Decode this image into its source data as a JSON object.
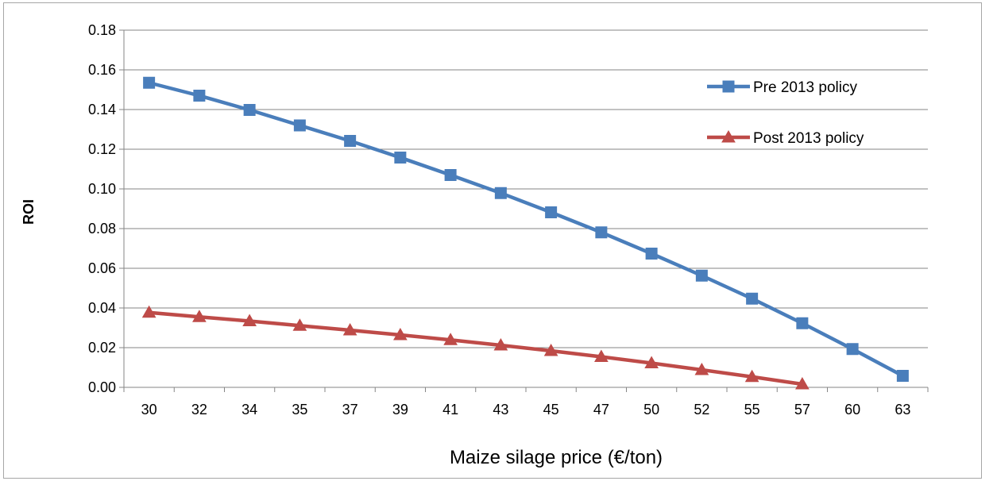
{
  "chart_data": {
    "type": "line",
    "title": "",
    "xlabel": "Maize silage price (€/ton)",
    "ylabel": "ROI",
    "categories": [
      "30",
      "32",
      "34",
      "35",
      "37",
      "39",
      "41",
      "43",
      "45",
      "47",
      "50",
      "52",
      "55",
      "57",
      "60",
      "63"
    ],
    "ylim": [
      0,
      0.18
    ],
    "yticks": [
      "0.00",
      "0.02",
      "0.04",
      "0.06",
      "0.08",
      "0.10",
      "0.12",
      "0.14",
      "0.16",
      "0.18"
    ],
    "grid": true,
    "legend_position": "top-right",
    "series": [
      {
        "name": "Pre 2013 policy",
        "color": "#4a7ebb",
        "marker": "square",
        "values": [
          0.1535,
          0.147,
          0.1398,
          0.132,
          0.1242,
          0.1158,
          0.107,
          0.0979,
          0.0882,
          0.0781,
          0.0674,
          0.0563,
          0.0447,
          0.0323,
          0.0193,
          0.0058
        ]
      },
      {
        "name": "Post 2013 policy",
        "color": "#be4b48",
        "marker": "triangle",
        "values": [
          0.0377,
          0.0355,
          0.0334,
          0.0311,
          0.0288,
          0.0264,
          0.0239,
          0.0212,
          0.0184,
          0.0154,
          0.0122,
          0.0088,
          0.0053,
          0.0016,
          null,
          null
        ]
      }
    ]
  }
}
